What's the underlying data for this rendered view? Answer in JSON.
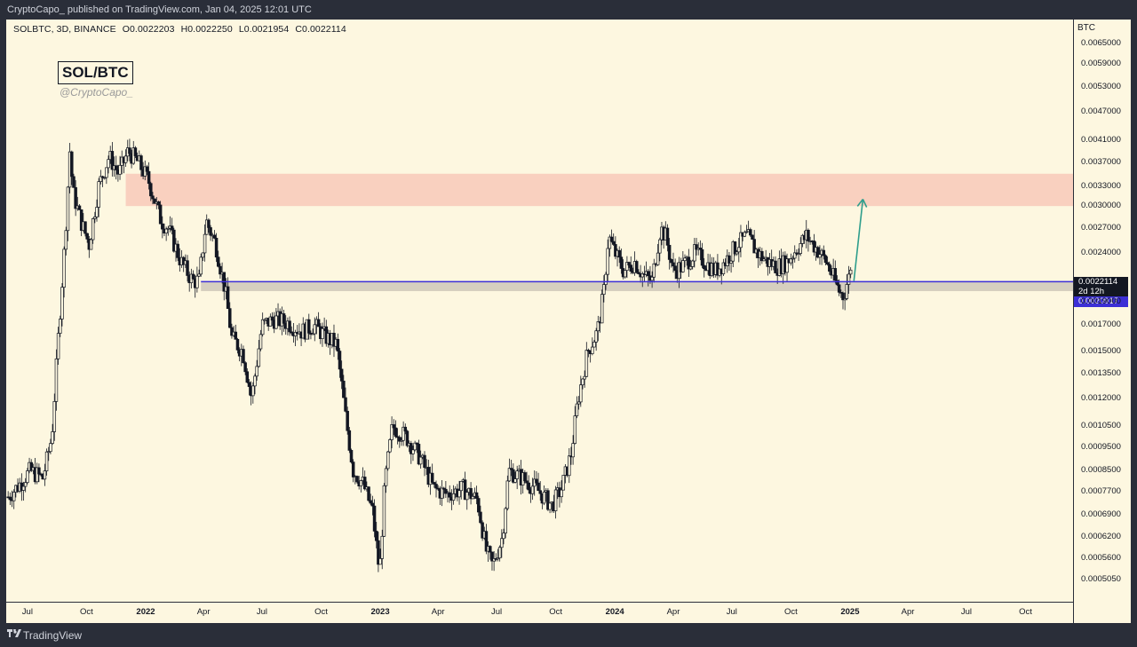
{
  "header": {
    "published": "CryptoCapo_ published on TradingView.com, Jan 04, 2025 12:01 UTC"
  },
  "legend": {
    "symbol": "SOLBTC, 3D, BINANCE",
    "open": "O0.0022203",
    "high": "H0.0022250",
    "low": "L0.0021954",
    "close": "C0.0022114"
  },
  "watermark": {
    "title": "SOL/BTC",
    "handle": "@CryptoCapo_"
  },
  "price_axis": {
    "currency": "BTC",
    "last_price_label": "0.0022114",
    "countdown": "2d 12h",
    "level_label": "0.0020917"
  },
  "footer": {
    "brand": "TradingView"
  },
  "colors": {
    "background": "#fdf7e0",
    "resistance_zone": "#f9d0bf",
    "support_zone": "#d6cfbf",
    "level_line": "#3c2fd6",
    "arrow": "#2e9e8c",
    "candles": "#131722"
  },
  "chart_data": {
    "type": "candlestick",
    "title": "SOL/BTC",
    "scale": "log",
    "ylim": [
      0.000455,
      0.0073
    ],
    "xlim": [
      "2021-05-29",
      "2025-12-14"
    ],
    "y_ticks": [
      "0.0065000",
      "0.0059000",
      "0.0053000",
      "0.0047000",
      "0.0041000",
      "0.0037000",
      "0.0033000",
      "0.0030000",
      "0.0027000",
      "0.0024000",
      "0.0019000",
      "0.0017000",
      "0.0015000",
      "0.0013500",
      "0.0012000",
      "0.0010500",
      "0.0009500",
      "0.0008500",
      "0.0007700",
      "0.0006900",
      "0.0006200",
      "0.0005600",
      "0.0005050"
    ],
    "x_ticks": [
      {
        "label": "Jul",
        "date": "2021-07-01",
        "bold": false
      },
      {
        "label": "Oct",
        "date": "2021-10-01",
        "bold": false
      },
      {
        "label": "2022",
        "date": "2022-01-01",
        "bold": true
      },
      {
        "label": "Apr",
        "date": "2022-04-01",
        "bold": false
      },
      {
        "label": "Jul",
        "date": "2022-07-01",
        "bold": false
      },
      {
        "label": "Oct",
        "date": "2022-10-01",
        "bold": false
      },
      {
        "label": "2023",
        "date": "2023-01-01",
        "bold": true
      },
      {
        "label": "Apr",
        "date": "2023-04-01",
        "bold": false
      },
      {
        "label": "Jul",
        "date": "2023-07-01",
        "bold": false
      },
      {
        "label": "Oct",
        "date": "2023-10-01",
        "bold": false
      },
      {
        "label": "2024",
        "date": "2024-01-01",
        "bold": true
      },
      {
        "label": "Apr",
        "date": "2024-04-01",
        "bold": false
      },
      {
        "label": "Jul",
        "date": "2024-07-01",
        "bold": false
      },
      {
        "label": "Oct",
        "date": "2024-10-01",
        "bold": false
      },
      {
        "label": "2025",
        "date": "2025-01-01",
        "bold": true
      },
      {
        "label": "Apr",
        "date": "2025-04-01",
        "bold": false
      },
      {
        "label": "Jul",
        "date": "2025-07-01",
        "bold": false
      },
      {
        "label": "Oct",
        "date": "2025-10-01",
        "bold": false
      }
    ],
    "series": [
      {
        "interval_days": 3,
        "first_candle": "2021-06-01",
        "last_candle": "2025-01-04",
        "keypoints": [
          [
            "2021-06-01",
            0.00075
          ],
          [
            "2021-06-20",
            0.0008
          ],
          [
            "2021-07-05",
            0.00085
          ],
          [
            "2021-07-25",
            0.00082
          ],
          [
            "2021-08-08",
            0.001
          ],
          [
            "2021-08-18",
            0.0016
          ],
          [
            "2021-08-28",
            0.0025
          ],
          [
            "2021-09-05",
            0.0039
          ],
          [
            "2021-09-10",
            0.0032
          ],
          [
            "2021-09-22",
            0.0028
          ],
          [
            "2021-10-05",
            0.0025
          ],
          [
            "2021-10-20",
            0.0033
          ],
          [
            "2021-11-05",
            0.0038
          ],
          [
            "2021-11-20",
            0.0035
          ],
          [
            "2021-12-05",
            0.0039
          ],
          [
            "2021-12-20",
            0.0037
          ],
          [
            "2022-01-05",
            0.0034
          ],
          [
            "2022-01-25",
            0.0028
          ],
          [
            "2022-02-05",
            0.0027
          ],
          [
            "2022-02-25",
            0.0023
          ],
          [
            "2022-03-15",
            0.0021
          ],
          [
            "2022-03-25",
            0.0021
          ],
          [
            "2022-04-05",
            0.0028
          ],
          [
            "2022-04-20",
            0.0025
          ],
          [
            "2022-05-05",
            0.002
          ],
          [
            "2022-05-15",
            0.0016
          ],
          [
            "2022-06-01",
            0.0015
          ],
          [
            "2022-06-15",
            0.0012
          ],
          [
            "2022-07-01",
            0.0017
          ],
          [
            "2022-07-20",
            0.00175
          ],
          [
            "2022-08-10",
            0.00172
          ],
          [
            "2022-09-01",
            0.00165
          ],
          [
            "2022-09-20",
            0.0017
          ],
          [
            "2022-10-10",
            0.0016
          ],
          [
            "2022-10-25",
            0.00155
          ],
          [
            "2022-11-08",
            0.0011
          ],
          [
            "2022-11-20",
            0.00085
          ],
          [
            "2022-12-05",
            0.0008
          ],
          [
            "2022-12-20",
            0.0007
          ],
          [
            "2022-12-31",
            0.00052
          ],
          [
            "2023-01-08",
            0.0008
          ],
          [
            "2023-01-20",
            0.00105
          ],
          [
            "2023-02-10",
            0.001
          ],
          [
            "2023-03-05",
            0.0009
          ],
          [
            "2023-03-25",
            0.00078
          ],
          [
            "2023-04-15",
            0.00076
          ],
          [
            "2023-05-10",
            0.00078
          ],
          [
            "2023-06-01",
            0.00074
          ],
          [
            "2023-06-15",
            0.00058
          ],
          [
            "2023-06-25",
            0.00054
          ],
          [
            "2023-07-10",
            0.00062
          ],
          [
            "2023-07-20",
            0.00085
          ],
          [
            "2023-08-10",
            0.00082
          ],
          [
            "2023-09-01",
            0.00078
          ],
          [
            "2023-09-25",
            0.00072
          ],
          [
            "2023-10-10",
            0.00078
          ],
          [
            "2023-10-25",
            0.00092
          ],
          [
            "2023-11-05",
            0.0012
          ],
          [
            "2023-11-20",
            0.0015
          ],
          [
            "2023-12-05",
            0.00165
          ],
          [
            "2023-12-15",
            0.002
          ],
          [
            "2023-12-22",
            0.0026
          ],
          [
            "2024-01-01",
            0.0024
          ],
          [
            "2024-01-15",
            0.0022
          ],
          [
            "2024-02-01",
            0.0023
          ],
          [
            "2024-02-15",
            0.00215
          ],
          [
            "2024-02-28",
            0.0021
          ],
          [
            "2024-03-12",
            0.0027
          ],
          [
            "2024-03-20",
            0.0026
          ],
          [
            "2024-04-01",
            0.0022
          ],
          [
            "2024-04-15",
            0.00225
          ],
          [
            "2024-05-05",
            0.0024
          ],
          [
            "2024-05-20",
            0.0023
          ],
          [
            "2024-06-05",
            0.0022
          ],
          [
            "2024-06-20",
            0.0023
          ],
          [
            "2024-07-10",
            0.0025
          ],
          [
            "2024-07-25",
            0.0026
          ],
          [
            "2024-08-10",
            0.0024
          ],
          [
            "2024-08-25",
            0.0023
          ],
          [
            "2024-09-10",
            0.00225
          ],
          [
            "2024-09-25",
            0.0023
          ],
          [
            "2024-10-10",
            0.00245
          ],
          [
            "2024-10-25",
            0.0026
          ],
          [
            "2024-11-10",
            0.00245
          ],
          [
            "2024-11-25",
            0.0023
          ],
          [
            "2024-12-05",
            0.00215
          ],
          [
            "2024-12-15",
            0.002
          ],
          [
            "2024-12-22",
            0.00195
          ],
          [
            "2024-12-28",
            0.0021
          ],
          [
            "2025-01-04",
            0.0022114
          ]
        ]
      }
    ],
    "zones": [
      {
        "name": "resistance",
        "from": 0.003,
        "to": 0.0035,
        "start": "2021-12-01"
      },
      {
        "name": "support",
        "from": 0.0020917,
        "to": 0.002,
        "start": "2022-03-28"
      }
    ],
    "horizontal_lines": [
      {
        "value": 0.0020917,
        "start": "2022-03-28"
      }
    ],
    "arrows": [
      {
        "from": [
          "2025-01-07",
          0.0021
        ],
        "to": [
          "2025-01-21",
          0.0031
        ]
      }
    ]
  }
}
